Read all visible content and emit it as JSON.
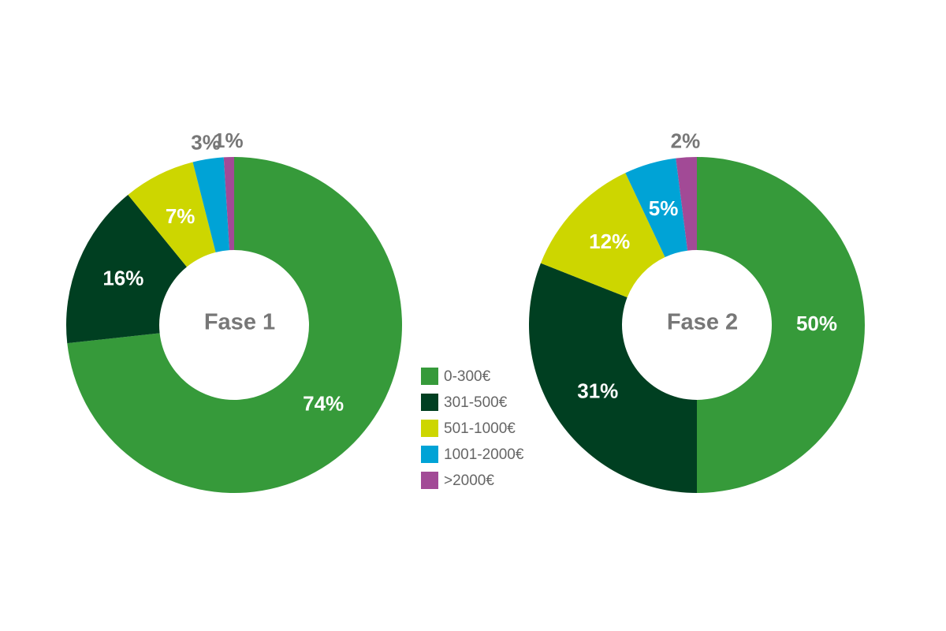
{
  "chart_data": [
    {
      "type": "pie",
      "title": "Fase 1",
      "values": [
        74,
        16,
        7,
        3,
        1
      ],
      "value_labels": [
        "74%",
        "16%",
        "7%",
        "3%",
        "1%"
      ]
    },
    {
      "type": "pie",
      "title": "Fase 2",
      "values": [
        50,
        31,
        12,
        5,
        2
      ],
      "value_labels": [
        "50%",
        "31%",
        "12%",
        "5%",
        "2%"
      ]
    }
  ],
  "legend": {
    "labels": [
      "0-300€",
      "301-500€",
      "501-1000€",
      "1001-2000€",
      ">2000€"
    ],
    "colors": [
      "#369a3a",
      "#003f21",
      "#cdd600",
      "#00a3d6",
      "#a24a96"
    ]
  }
}
